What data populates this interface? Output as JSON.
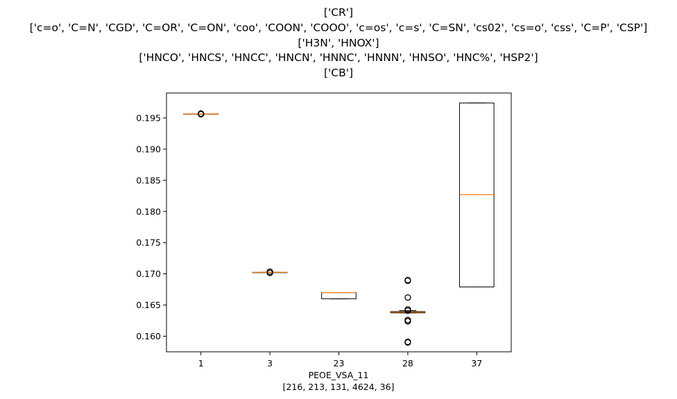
{
  "chart_data": {
    "type": "boxplot",
    "title_lines": [
      "['CR']",
      "['c=o', 'C=N', 'CGD', 'C=OR', 'C=ON', 'coo', 'COON', 'COOO', 'c=os', 'c=s', 'C=SN', 'cs02', 'cs=o', 'css', 'C=P', 'CSP']",
      "['H3N', 'HNOX']",
      "['HNCO', 'HNCS', 'HNCC', 'HNCN', 'HNNC', 'HNNN', 'HNSO', 'HNC%', 'HSP2']",
      "['CB']"
    ],
    "xlabel": "PEOE_VSA_11",
    "xlabel_sub": "[216, 213, 131, 4624, 36]",
    "ylim": [
      0.1575,
      0.199
    ],
    "yticks": [
      0.16,
      0.165,
      0.17,
      0.175,
      0.18,
      0.185,
      0.19,
      0.195
    ],
    "ytick_labels": [
      "0.160",
      "0.165",
      "0.170",
      "0.175",
      "0.180",
      "0.185",
      "0.190",
      "0.195"
    ],
    "categories": [
      "1",
      "3",
      "23",
      "28",
      "37"
    ],
    "boxes": [
      {
        "q1": 0.19565,
        "median": 0.19565,
        "q3": 0.19565,
        "whislo": 0.19565,
        "whishi": 0.19565,
        "fliers": [
          0.1956,
          0.1957
        ]
      },
      {
        "q1": 0.17025,
        "median": 0.17025,
        "q3": 0.17025,
        "whislo": 0.17025,
        "whishi": 0.17025,
        "fliers": [
          0.17015,
          0.17035
        ]
      },
      {
        "q1": 0.166,
        "median": 0.167,
        "q3": 0.167,
        "whislo": 0.166,
        "whishi": 0.167,
        "fliers": []
      },
      {
        "q1": 0.16375,
        "median": 0.16385,
        "q3": 0.16395,
        "whislo": 0.16375,
        "whishi": 0.1641,
        "fliers": [
          0.169,
          0.1689,
          0.1662,
          0.1643,
          0.1641,
          0.1626,
          0.1624,
          0.1591,
          0.159
        ]
      },
      {
        "q1": 0.1679,
        "median": 0.1827,
        "q3": 0.1974,
        "whislo": 0.1679,
        "whishi": 0.1974,
        "fliers": []
      }
    ],
    "box_color": "#000000",
    "median_color": "#ff7f0e",
    "grid": false,
    "legend": "none"
  }
}
